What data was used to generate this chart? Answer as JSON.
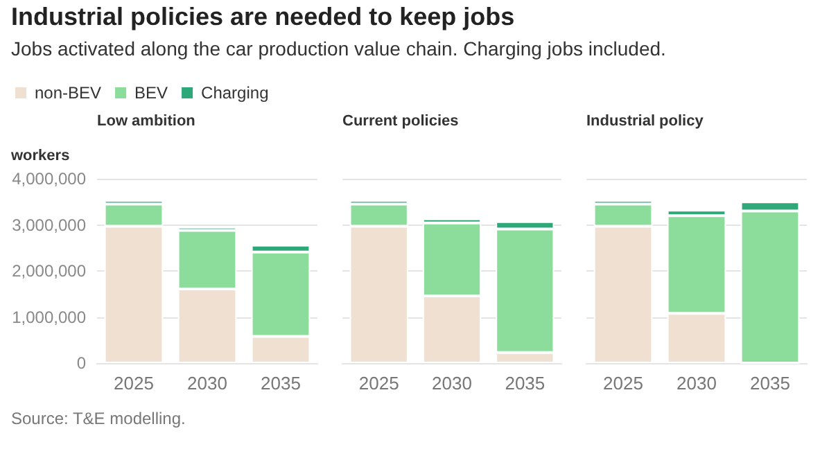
{
  "chart_data": [
    {
      "type": "other",
      "title": "Industrial policies are needed to keep jobs",
      "subtitle": "Jobs activated along the car production value chain. Charging jobs included.",
      "annotations": [
        "Source: T&E modelling."
      ]
    },
    {
      "type": "bar",
      "stacked": true,
      "title": "Low ambition",
      "ylabel": "workers",
      "categories": [
        "2025",
        "2030",
        "2035"
      ],
      "ylim": [
        0,
        4000000
      ],
      "yticks": [
        0,
        {
          "value": 1000000,
          "label": "1,000,000"
        },
        {
          "value": 2000000,
          "label": "2,000,000"
        },
        {
          "value": 3000000,
          "label": "3,000,000"
        },
        {
          "value": 4000000,
          "label": "4,000,000"
        }
      ],
      "grid": "y",
      "legend": "top left",
      "series": [
        {
          "name": "non-BEV",
          "color": "#efe0d2",
          "values": [
            2970000,
            1610000,
            580000
          ]
        },
        {
          "name": "BEV",
          "color": "#8cdc9c",
          "values": [
            480000,
            1270000,
            1830000
          ]
        },
        {
          "name": "Charging",
          "color": "#2ea878",
          "values": [
            80000,
            70000,
            150000
          ]
        }
      ]
    },
    {
      "type": "bar",
      "stacked": true,
      "title": "Current policies",
      "categories": [
        "2025",
        "2030",
        "2035"
      ],
      "ylim": [
        0,
        4000000
      ],
      "yticks": [
        0,
        1000000,
        2000000,
        3000000,
        4000000
      ],
      "grid": "y",
      "tick_labels": "x",
      "series": [
        {
          "color": "#efe0d2",
          "values": [
            2970000,
            1460000,
            230000
          ]
        },
        {
          "color": "#8cdc9c",
          "values": [
            480000,
            1580000,
            2680000
          ]
        },
        {
          "color": "#2ea878",
          "values": [
            80000,
            90000,
            160000
          ]
        }
      ]
    },
    {
      "type": "bar",
      "stacked": true,
      "title": "Industrial policy",
      "categories": [
        "2025",
        "2030",
        "2035"
      ],
      "ylim": [
        0,
        4000000
      ],
      "yticks": [
        0,
        1000000,
        2000000,
        3000000,
        4000000
      ],
      "grid": "y",
      "tick_labels": "x",
      "series": [
        {
          "color": "#efe0d2",
          "values": [
            2970000,
            1080000,
            0
          ]
        },
        {
          "color": "#8cdc9c",
          "values": [
            480000,
            2120000,
            3300000
          ]
        },
        {
          "color": "#2ea878",
          "values": [
            80000,
            120000,
            200000
          ]
        }
      ]
    }
  ]
}
